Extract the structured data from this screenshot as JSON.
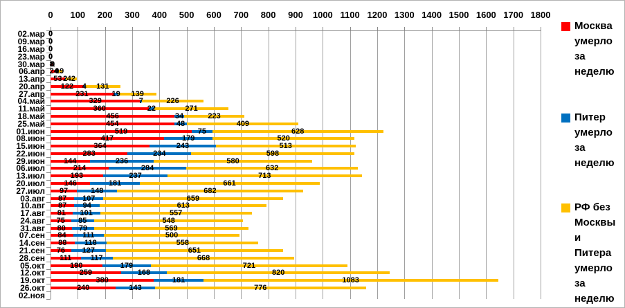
{
  "chart_data": {
    "type": "bar",
    "orientation": "horizontal",
    "stacked": true,
    "title": "",
    "xlabel": "",
    "ylabel": "",
    "xlim": [
      0,
      1800
    ],
    "grid": true,
    "legend_position": "right",
    "x_ticks": [
      0,
      100,
      200,
      300,
      400,
      500,
      600,
      700,
      800,
      900,
      1000,
      1100,
      1200,
      1300,
      1400,
      1500,
      1600,
      1700,
      1800
    ],
    "categories": [
      "02.мар",
      "09.мар",
      "16.мар",
      "23.мар",
      "30.мар",
      "06.апр",
      "13.апр",
      "20.апр",
      "27.апр",
      "04.май",
      "11.май",
      "18.май",
      "25.май",
      "01.июн",
      "08.июн",
      "15.июн",
      "22.июн",
      "29.июн",
      "06.июл",
      "13.июл",
      "20.июл",
      "27.июл",
      "03.авг",
      "10.авг",
      "17.авг",
      "24.авг",
      "31.авг",
      "07.сен",
      "14.сен",
      "21.сен",
      "28.сен",
      "05.окт",
      "12.окт",
      "19.окт",
      "26.окт",
      "02.ноя"
    ],
    "series": [
      {
        "id": "moscow",
        "name": "Москва умерло за неделю",
        "legend_lines": [
          "Москва",
          "умерло",
          "за",
          "неделю"
        ],
        "color": "#FF0000",
        "values": [
          0,
          0,
          0,
          0,
          8,
          24,
          53,
          122,
          231,
          329,
          360,
          456,
          454,
          519,
          417,
          364,
          283,
          144,
          214,
          193,
          146,
          97,
          87,
          87,
          81,
          75,
          80,
          84,
          88,
          76,
          111,
          190,
          259,
          380,
          240,
          null
        ]
      },
      {
        "id": "piter",
        "name": "Питер умерло за неделю",
        "legend_lines": [
          "Питер",
          "умерло",
          "за",
          "неделю"
        ],
        "color": "#0070C0",
        "values": [
          0,
          0,
          0,
          0,
          0,
          0,
          2,
          4,
          19,
          7,
          22,
          34,
          48,
          75,
          179,
          243,
          234,
          236,
          284,
          237,
          181,
          148,
          107,
          94,
          101,
          85,
          79,
          111,
          118,
          127,
          117,
          179,
          168,
          181,
          143,
          null
        ]
      },
      {
        "id": "rf",
        "name": "РФ без Москвы и Питера умерло за неделю",
        "legend_lines": [
          "РФ без",
          "Москвы",
          "и",
          "Питера",
          "умерло",
          "за",
          "неделю"
        ],
        "color": "#FFC000",
        "values": [
          0,
          0,
          0,
          0,
          1,
          19,
          42,
          131,
          139,
          226,
          271,
          223,
          409,
          628,
          520,
          513,
          598,
          580,
          632,
          713,
          661,
          682,
          659,
          613,
          557,
          548,
          569,
          500,
          558,
          651,
          668,
          721,
          820,
          1083,
          776,
          null
        ]
      }
    ],
    "colors": {
      "gridline": "#a0a0a0",
      "axis": "#8a8a8a",
      "label": "#000000",
      "background": "#ffffff"
    }
  }
}
